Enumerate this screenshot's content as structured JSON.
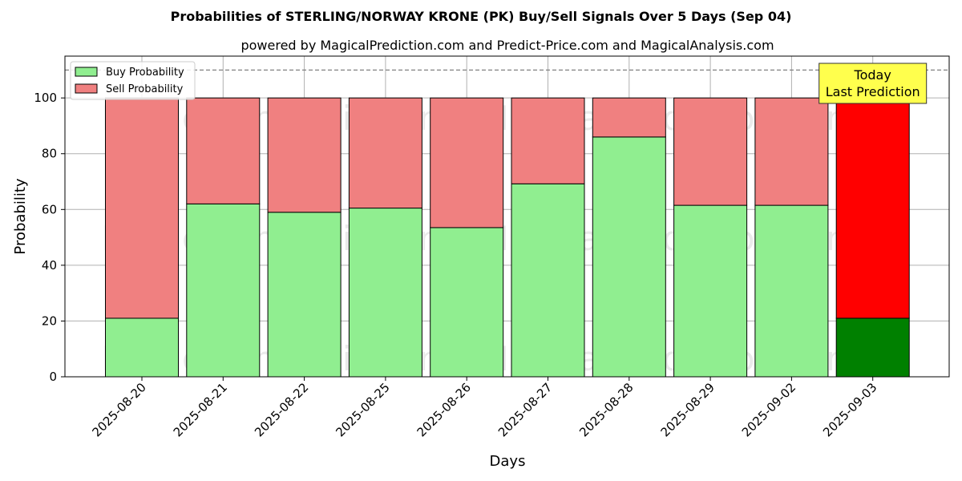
{
  "chart_data": {
    "type": "bar",
    "stacked": true,
    "title": "Probabilities of STERLING/NORWAY KRONE (PK) Buy/Sell Signals Over 5 Days (Sep 04)",
    "subtitle": "powered by MagicalPrediction.com and Predict-Price.com and MagicalAnalysis.com",
    "xlabel": "Days",
    "ylabel": "Probability",
    "ylim": [
      0,
      115
    ],
    "yticks": [
      0,
      20,
      40,
      60,
      80,
      100
    ],
    "grid": true,
    "legend_position": "top-left",
    "categories": [
      "2025-08-20",
      "2025-08-21",
      "2025-08-22",
      "2025-08-25",
      "2025-08-26",
      "2025-08-27",
      "2025-08-28",
      "2025-08-29",
      "2025-09-02",
      "2025-09-03"
    ],
    "series": [
      {
        "name": "Buy Probability",
        "values": [
          21,
          62,
          59,
          60.5,
          53.5,
          69.2,
          86,
          61.5,
          61.5,
          21
        ],
        "color": "#90ee90",
        "highlight_color": "#008000"
      },
      {
        "name": "Sell Probability",
        "values": [
          79,
          38,
          41,
          39.5,
          46.5,
          30.8,
          14,
          38.5,
          38.5,
          79
        ],
        "color": "#f08080",
        "highlight_color": "#ff0000"
      }
    ],
    "reference_line": {
      "y": 110,
      "style": "dashed",
      "color": "#808080"
    },
    "annotation": {
      "lines": [
        "Today",
        "Last Prediction"
      ],
      "target_category": "2025-09-03",
      "background": "#ffff4d"
    },
    "watermarks": [
      "MagicalAnalysis.com",
      "MagicalPrediction.com"
    ]
  }
}
